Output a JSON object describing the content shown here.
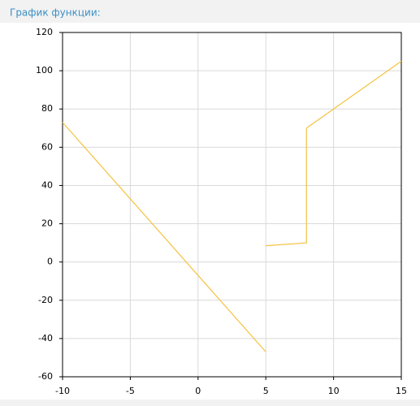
{
  "chart_data": {
    "type": "line",
    "title": "График функции:",
    "x": [
      -10,
      5,
      null,
      5,
      8,
      8,
      15
    ],
    "series": [
      {
        "color": "#f5c242",
        "values": [
          73,
          -47,
          null,
          8.5,
          10,
          70,
          105
        ]
      }
    ],
    "xlim": [
      -10,
      15
    ],
    "xticks": [
      -10,
      -5,
      0,
      5,
      10,
      15
    ],
    "ylim": [
      -60,
      120
    ],
    "yticks": [
      -60,
      -40,
      -20,
      0,
      20,
      40,
      60,
      80,
      100,
      120
    ],
    "grid": true
  }
}
